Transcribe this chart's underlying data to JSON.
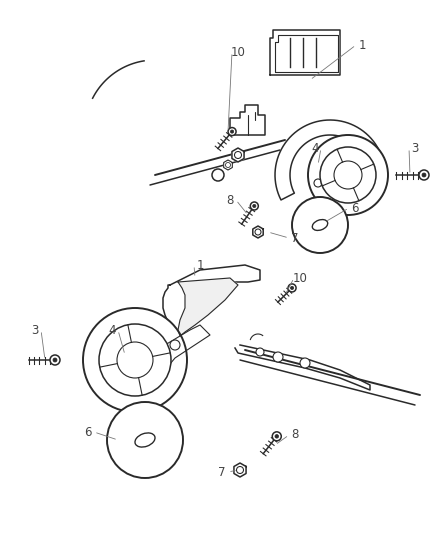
{
  "bg_color": "#ffffff",
  "line_color": "#2a2a2a",
  "label_color": "#555555",
  "fig_width": 4.39,
  "fig_height": 5.33,
  "dpi": 100
}
